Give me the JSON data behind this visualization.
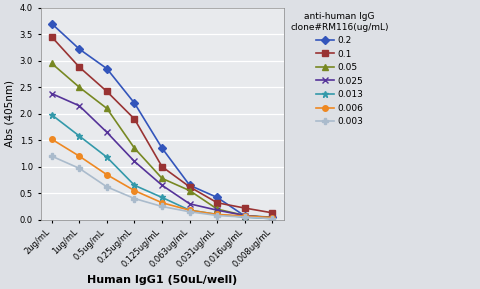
{
  "x_labels": [
    "2ug/mL",
    "1ug/mL",
    "0.5ug/mL",
    "0.25ug/mL",
    "0.125ug/mL",
    "0.063ug/mL",
    "0.031ug/mL",
    "0.016ug/mL",
    "0.008ug/mL"
  ],
  "series": [
    {
      "label": "0.2",
      "color": "#3355BB",
      "marker": "D",
      "markersize": 4,
      "values": [
        3.7,
        3.22,
        2.85,
        2.2,
        1.35,
        0.65,
        0.42,
        0.07,
        0.05
      ]
    },
    {
      "label": "0.1",
      "color": "#993333",
      "marker": "s",
      "markersize": 4,
      "values": [
        3.45,
        2.88,
        2.42,
        1.9,
        1.0,
        0.62,
        0.32,
        0.22,
        0.13
      ]
    },
    {
      "label": "0.05",
      "color": "#778822",
      "marker": "^",
      "markersize": 5,
      "values": [
        2.95,
        2.5,
        2.1,
        1.35,
        0.78,
        0.55,
        0.2,
        0.08,
        0.04
      ]
    },
    {
      "label": "0.025",
      "color": "#553399",
      "marker": "x",
      "markersize": 5,
      "values": [
        2.38,
        2.15,
        1.65,
        1.1,
        0.65,
        0.3,
        0.18,
        0.08,
        0.03
      ]
    },
    {
      "label": "0.013",
      "color": "#3399AA",
      "marker": "*",
      "markersize": 5,
      "values": [
        1.98,
        1.58,
        1.18,
        0.65,
        0.42,
        0.18,
        0.1,
        0.05,
        0.02
      ]
    },
    {
      "label": "0.006",
      "color": "#EE8822",
      "marker": "o",
      "markersize": 4,
      "values": [
        1.52,
        1.2,
        0.85,
        0.55,
        0.32,
        0.18,
        0.1,
        0.07,
        0.04
      ]
    },
    {
      "label": "0.003",
      "color": "#AABBCC",
      "marker": "P",
      "markersize": 4,
      "values": [
        1.2,
        0.97,
        0.62,
        0.4,
        0.25,
        0.15,
        0.08,
        0.05,
        0.02
      ]
    }
  ],
  "xlabel": "Human IgG1 (50uL/well)",
  "ylabel": "Abs (405nm)",
  "legend_title": "anti-human IgG\nclone#RM116(ug/mL)",
  "ylim": [
    0,
    4
  ],
  "yticks": [
    0,
    0.5,
    1,
    1.5,
    2,
    2.5,
    3,
    3.5,
    4
  ],
  "background_color": "#dde0e5",
  "plot_bg_color": "#e8eaed",
  "grid_color": "#ffffff",
  "xlabel_fontsize": 8,
  "ylabel_fontsize": 7.5,
  "tick_fontsize": 6,
  "legend_fontsize": 6.5,
  "legend_title_fontsize": 6.5
}
